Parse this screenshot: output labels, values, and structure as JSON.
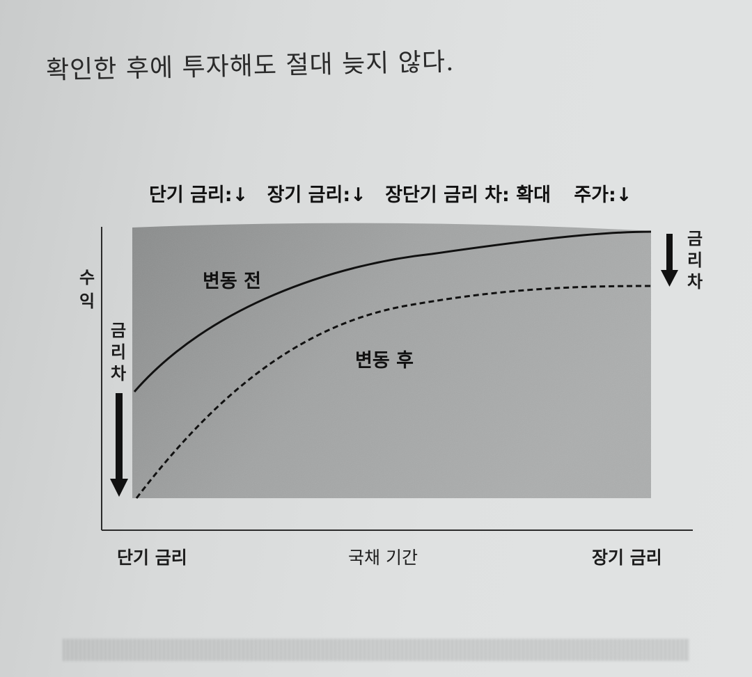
{
  "page": {
    "text_line": "확인한 후에 투자해도 절대 늦지 않다."
  },
  "header": {
    "items": [
      {
        "label": "단기 금리:",
        "arrow": "↓"
      },
      {
        "label": "장기 금리:",
        "arrow": "↓"
      },
      {
        "label": "장단기 금리 차: 확대",
        "arrow": ""
      },
      {
        "label": "주가:",
        "arrow": "↓"
      }
    ]
  },
  "diagram": {
    "y_axis_label_chars": [
      "수",
      "익"
    ],
    "left_spread_chars": [
      "금",
      "리",
      "차"
    ],
    "right_spread_chars": [
      "금",
      "리",
      "차"
    ],
    "curve_before_label": "변동 전",
    "curve_after_label": "변동 후",
    "x_left_label": "단기 금리",
    "x_mid_label": "국채 기간",
    "x_right_label": "장기 금리",
    "colors": {
      "area_dark": "#8d8f8f",
      "area_mid": "#a5a7a7",
      "line": "#111111",
      "axis": "#2a2a2a"
    }
  }
}
